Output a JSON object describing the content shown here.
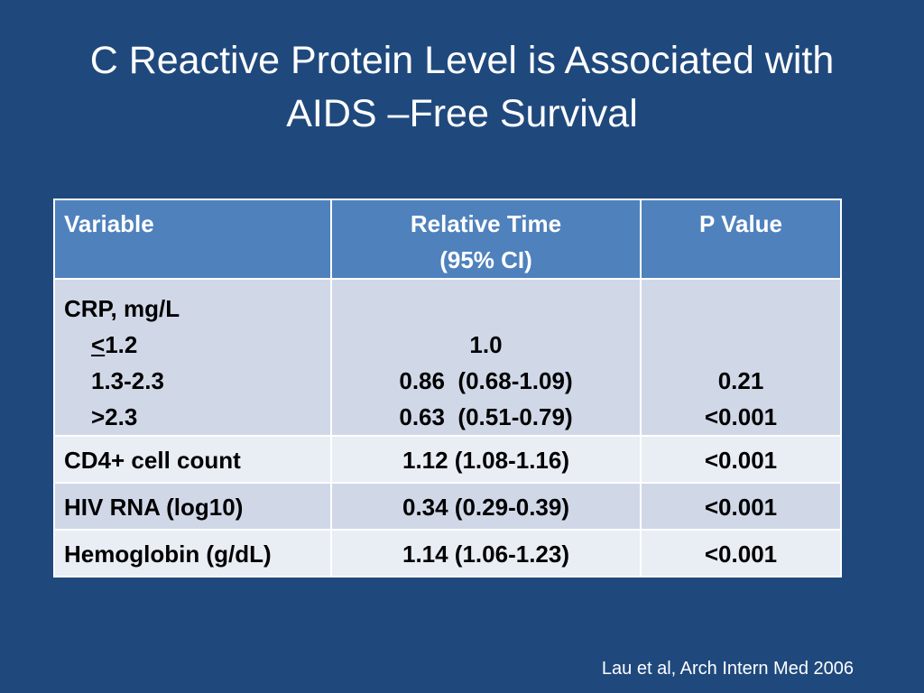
{
  "title": {
    "line1": "C Reactive Protein Level is Associated with",
    "line2": "AIDS –Free Survival"
  },
  "table": {
    "headers": {
      "variable": "Variable",
      "relative_time_line1": "Relative Time",
      "relative_time_line2": "(95% CI)",
      "p_value": "P Value"
    },
    "crp": {
      "label": "CRP, mg/L",
      "levels": [
        {
          "sym": "<",
          "label": "1.2"
        },
        {
          "sym": "",
          "label": "1.3-2.3"
        },
        {
          "sym": "",
          "label": ">2.3"
        }
      ],
      "relative_times": [
        "1.0",
        "0.86  (0.68-1.09)",
        "0.63  (0.51-0.79)"
      ],
      "p_values": [
        "",
        "0.21",
        "<0.001"
      ]
    },
    "rows": [
      {
        "variable": "CD4+ cell count",
        "relative_time": "1.12  (1.08-1.16)",
        "p_value": "<0.001"
      },
      {
        "variable": "HIV RNA (log10)",
        "relative_time": "0.34  (0.29-0.39)",
        "p_value": "<0.001"
      },
      {
        "variable": "Hemoglobin (g/dL)",
        "relative_time": "1.14  (1.06-1.23)",
        "p_value": "<0.001"
      }
    ]
  },
  "citation": "Lau et al, Arch Intern Med 2006",
  "colors": {
    "background": "#1f497d",
    "header_fill": "#4f81bd",
    "row_fill": "#d0d8e8",
    "row_alt_fill": "#e9edf4"
  }
}
